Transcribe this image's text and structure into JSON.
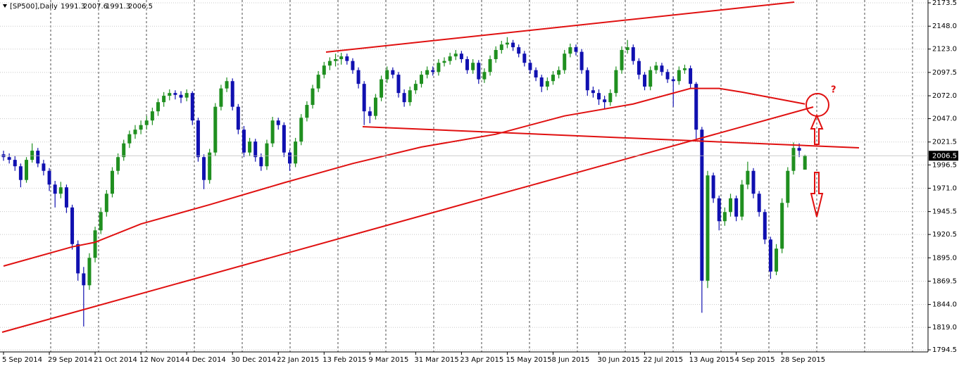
{
  "chart_data": {
    "type": "candlestick",
    "title": "[SP500],Daily",
    "annotation": "?",
    "bull_color": "#1f8f1f",
    "bear_color": "#1010b0",
    "ma_color": "#e01010",
    "grid": true,
    "ylim": [
      1789.9,
      2176.6
    ],
    "yticks": [
      2173.5,
      {
        "value": 2148,
        "label": "2148.0"
      },
      {
        "value": 2123,
        "label": "2123.0"
      },
      2097.5,
      {
        "value": 2072,
        "label": "2072.0"
      },
      {
        "value": 2047,
        "label": "2047.0"
      },
      2021.5,
      1996.5,
      {
        "value": 1971,
        "label": "1971.0"
      },
      1945.5,
      1920.5,
      {
        "value": 1895,
        "label": "1895.0"
      },
      1869.5,
      {
        "value": 1844,
        "label": "1844.0"
      },
      {
        "value": 1819,
        "label": "1819.0"
      },
      1794.5
    ],
    "categories": [
      "5 Sep 2014",
      null,
      null,
      null,
      null,
      null,
      null,
      null,
      "29 Sep 2014",
      null,
      null,
      null,
      null,
      null,
      null,
      null,
      "21 Oct 2014",
      null,
      null,
      null,
      null,
      null,
      null,
      null,
      "12 Nov 2014",
      null,
      null,
      null,
      null,
      null,
      null,
      null,
      "4 Dec 2014",
      null,
      null,
      null,
      null,
      null,
      null,
      null,
      "30 Dec 2014",
      null,
      null,
      null,
      null,
      null,
      null,
      null,
      "22 Jan 2015",
      null,
      null,
      null,
      null,
      null,
      null,
      null,
      "13 Feb 2015",
      null,
      null,
      null,
      null,
      null,
      null,
      null,
      "9 Mar 2015",
      null,
      null,
      null,
      null,
      null,
      null,
      null,
      "31 Mar 2015",
      null,
      null,
      null,
      null,
      null,
      null,
      null,
      "23 Apr 2015",
      null,
      null,
      null,
      null,
      null,
      null,
      null,
      "15 May 2015",
      null,
      null,
      null,
      null,
      null,
      null,
      null,
      "8 Jun 2015",
      null,
      null,
      null,
      null,
      null,
      null,
      null,
      "30 Jun 2015",
      null,
      null,
      null,
      null,
      null,
      null,
      null,
      "22 Jul 2015",
      null,
      null,
      null,
      null,
      null,
      null,
      null,
      "13 Aug 2015",
      null,
      null,
      null,
      null,
      null,
      null,
      null,
      "4 Sep 2015",
      null,
      null,
      null,
      null,
      null,
      null,
      null,
      "28 Sep 2015",
      null,
      null,
      null,
      null
    ],
    "open": [
      2008,
      2005,
      2002,
      1995,
      1980,
      2002,
      2012,
      1998,
      1990,
      1975,
      1965,
      1972,
      1950,
      1910,
      1878,
      1865,
      1895,
      1925,
      1945,
      1965,
      1990,
      2005,
      2020,
      2030,
      2035,
      2040,
      2045,
      2055,
      2065,
      2072,
      2075,
      2073,
      2070,
      2075,
      2045,
      2005,
      1980,
      2010,
      2060,
      2080,
      2088,
      2060,
      2035,
      2010,
      2022,
      2005,
      1995,
      2020,
      2045,
      2040,
      2010,
      1998,
      2022,
      2048,
      2062,
      2080,
      2095,
      2105,
      2110,
      2112,
      2115,
      2110,
      2100,
      2085,
      2055,
      2050,
      2070,
      2090,
      2100,
      2095,
      2075,
      2065,
      2078,
      2085,
      2095,
      2100,
      2098,
      2108,
      2110,
      2115,
      2118,
      2112,
      2100,
      2108,
      2090,
      2098,
      2112,
      2122,
      2128,
      2130,
      2125,
      2118,
      2108,
      2100,
      2092,
      2082,
      2088,
      2095,
      2100,
      2118,
      2125,
      2120,
      2100,
      2078,
      2075,
      2068,
      2065,
      2075,
      2100,
      2122,
      2125,
      2110,
      2095,
      2082,
      2100,
      2105,
      2098,
      2090,
      2088,
      2100,
      2102,
      2085,
      2035,
      1870,
      1985,
      1960,
      1935,
      1945,
      1960,
      1940,
      1975,
      1990,
      1965,
      1945,
      1915,
      1880,
      1905,
      1955,
      1990,
      2015,
      1991.3
    ],
    "high": [
      2012,
      2009,
      2006,
      1998,
      2005,
      2020,
      2015,
      2002,
      1993,
      1979,
      1978,
      1975,
      1953,
      1914,
      1885,
      1900,
      1929,
      1950,
      1969,
      1994,
      2009,
      2024,
      2034,
      2040,
      2045,
      2050,
      2059,
      2069,
      2076,
      2079,
      2078,
      2077,
      2079,
      2077,
      2048,
      2008,
      2014,
      2064,
      2084,
      2092,
      2091,
      2063,
      2039,
      2026,
      2025,
      2009,
      2024,
      2049,
      2048,
      2043,
      2013,
      2026,
      2052,
      2066,
      2084,
      2099,
      2109,
      2114,
      2118,
      2119,
      2118,
      2113,
      2103,
      2088,
      2060,
      2074,
      2094,
      2104,
      2103,
      2098,
      2079,
      2082,
      2089,
      2099,
      2104,
      2104,
      2112,
      2114,
      2119,
      2122,
      2121,
      2115,
      2112,
      2111,
      2102,
      2116,
      2126,
      2132,
      2136,
      2133,
      2128,
      2121,
      2111,
      2103,
      2095,
      2092,
      2099,
      2104,
      2122,
      2129,
      2128,
      2123,
      2103,
      2082,
      2079,
      2072,
      2079,
      2104,
      2126,
      2133,
      2128,
      2113,
      2098,
      2104,
      2109,
      2108,
      2101,
      2093,
      2104,
      2106,
      2105,
      2087,
      2038,
      1990,
      1988,
      1963,
      1950,
      1965,
      1963,
      1980,
      2000,
      1993,
      1968,
      1948,
      1918,
      1910,
      1960,
      1994,
      2021,
      2020,
      2007.6
    ],
    "low": [
      2001,
      1998,
      1990,
      1972,
      1977,
      1999,
      1994,
      1985,
      1968,
      1950,
      1960,
      1944,
      1904,
      1870,
      1820,
      1860,
      1890,
      1921,
      1940,
      1961,
      1986,
      2001,
      2015,
      2025,
      2030,
      2035,
      2040,
      2050,
      2060,
      2067,
      2068,
      2064,
      2066,
      2040,
      2000,
      1970,
      1976,
      2006,
      2056,
      2076,
      2056,
      2030,
      2005,
      2006,
      2000,
      1990,
      1991,
      2016,
      2035,
      2005,
      1990,
      1994,
      2018,
      2044,
      2058,
      2076,
      2091,
      2100,
      2104,
      2106,
      2106,
      2096,
      2080,
      2040,
      2042,
      2046,
      2066,
      2086,
      2091,
      2070,
      2060,
      2061,
      2074,
      2081,
      2091,
      2094,
      2094,
      2104,
      2106,
      2111,
      2108,
      2096,
      2096,
      2085,
      2086,
      2094,
      2108,
      2118,
      2124,
      2121,
      2114,
      2104,
      2096,
      2088,
      2076,
      2078,
      2084,
      2091,
      2096,
      2114,
      2116,
      2096,
      2072,
      2070,
      2062,
      2058,
      2061,
      2071,
      2096,
      2118,
      2106,
      2090,
      2078,
      2078,
      2096,
      2094,
      2086,
      2060,
      2084,
      2096,
      2080,
      2025,
      1835,
      1862,
      1955,
      1925,
      1930,
      1940,
      1935,
      1936,
      1970,
      1960,
      1940,
      1910,
      1872,
      1876,
      1900,
      1950,
      1986,
      2005,
      1991.3
    ],
    "close": [
      2005,
      2002,
      1995,
      1980,
      2002,
      2012,
      1998,
      1990,
      1975,
      1965,
      1972,
      1950,
      1910,
      1878,
      1865,
      1895,
      1925,
      1945,
      1965,
      1990,
      2005,
      2020,
      2030,
      2035,
      2040,
      2045,
      2055,
      2065,
      2072,
      2075,
      2073,
      2070,
      2075,
      2045,
      2005,
      1980,
      2010,
      2060,
      2080,
      2088,
      2060,
      2035,
      2010,
      2022,
      2005,
      1995,
      2020,
      2045,
      2040,
      2010,
      1998,
      2022,
      2048,
      2062,
      2080,
      2095,
      2105,
      2110,
      2112,
      2115,
      2110,
      2100,
      2085,
      2055,
      2050,
      2070,
      2090,
      2100,
      2095,
      2075,
      2065,
      2078,
      2085,
      2095,
      2100,
      2098,
      2108,
      2110,
      2115,
      2118,
      2112,
      2100,
      2108,
      2090,
      2098,
      2112,
      2122,
      2128,
      2130,
      2125,
      2118,
      2108,
      2100,
      2092,
      2082,
      2088,
      2095,
      2100,
      2118,
      2125,
      2120,
      2100,
      2078,
      2075,
      2068,
      2065,
      2075,
      2100,
      2122,
      2125,
      2110,
      2095,
      2082,
      2100,
      2105,
      2098,
      2090,
      2088,
      2100,
      2102,
      2085,
      2035,
      1870,
      1985,
      1960,
      1935,
      1945,
      1960,
      1940,
      1975,
      1990,
      1965,
      1945,
      1915,
      1880,
      1905,
      1955,
      1990,
      2015,
      2012,
      2006.5
    ],
    "ma": {
      "x": [
        0,
        12,
        16,
        24,
        36,
        49,
        61,
        73,
        86,
        98,
        110,
        120,
        125,
        129,
        140
      ],
      "values": [
        1886,
        1907,
        1912,
        1932,
        1953,
        1977,
        1998,
        2016,
        2030,
        2050,
        2063,
        2080,
        2080,
        2076,
        2063
      ]
    }
  }
}
